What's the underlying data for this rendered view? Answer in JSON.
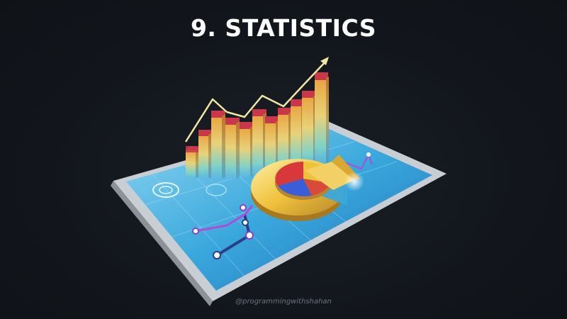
{
  "title": "9. STATISTICS",
  "watermark": "@programmingwithshahan",
  "colors": {
    "background": "#12161c",
    "title": "#ffffff",
    "tablet_screen": "#3da9dc",
    "bar_top": "#c8384a",
    "bar_body": "#e8c24a",
    "trend_line": "#f3e7a0",
    "pie_gold": "#f0c23c",
    "pie_red": "#d8383a",
    "pie_blue": "#3a5ed8"
  },
  "icons": [
    "tablet-icon",
    "bar-chart-icon",
    "pie-chart-icon",
    "trend-arrow-icon",
    "line-graph-icon"
  ]
}
